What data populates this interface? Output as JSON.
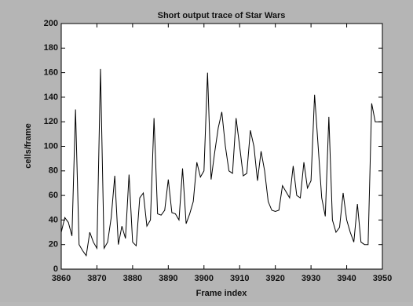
{
  "chart_data": {
    "type": "line",
    "title": "Short output trace of Star Wars",
    "xlabel": "Frame index",
    "ylabel": "cells/frame",
    "x": [
      3860,
      3861,
      3862,
      3863,
      3864,
      3865,
      3866,
      3867,
      3868,
      3869,
      3870,
      3871,
      3872,
      3873,
      3874,
      3875,
      3876,
      3877,
      3878,
      3879,
      3880,
      3881,
      3882,
      3883,
      3884,
      3885,
      3886,
      3887,
      3888,
      3889,
      3890,
      3891,
      3892,
      3893,
      3894,
      3895,
      3896,
      3897,
      3898,
      3899,
      3900,
      3901,
      3902,
      3903,
      3904,
      3905,
      3906,
      3907,
      3908,
      3909,
      3910,
      3911,
      3912,
      3913,
      3914,
      3915,
      3916,
      3917,
      3918,
      3919,
      3920,
      3921,
      3922,
      3923,
      3924,
      3925,
      3926,
      3927,
      3928,
      3929,
      3930,
      3931,
      3932,
      3933,
      3934,
      3935,
      3936,
      3937,
      3938,
      3939,
      3940,
      3941,
      3942,
      3943,
      3944,
      3945,
      3946,
      3947,
      3948,
      3949,
      3950
    ],
    "values": [
      30,
      42,
      38,
      27,
      130,
      20,
      15,
      11,
      30,
      22,
      17,
      163,
      17,
      22,
      42,
      76,
      20,
      35,
      25,
      77,
      22,
      19,
      58,
      62,
      35,
      40,
      123,
      45,
      44,
      48,
      73,
      46,
      45,
      40,
      82,
      37,
      45,
      55,
      87,
      75,
      80,
      160,
      73,
      95,
      115,
      128,
      100,
      80,
      78,
      123,
      100,
      76,
      78,
      113,
      100,
      72,
      96,
      80,
      55,
      48,
      47,
      48,
      68,
      63,
      58,
      84,
      60,
      58,
      87,
      66,
      72,
      142,
      100,
      58,
      43,
      124,
      40,
      30,
      34,
      62,
      40,
      30,
      22,
      53,
      22,
      20,
      20,
      135,
      120,
      120,
      120
    ],
    "color": "#000000",
    "xlim": [
      3860,
      3950
    ],
    "xticks": [
      3860,
      3870,
      3880,
      3890,
      3900,
      3910,
      3920,
      3930,
      3940,
      3950
    ],
    "ylim": [
      0,
      200
    ],
    "yticks": [
      0,
      20,
      40,
      60,
      80,
      100,
      120,
      140,
      160,
      180,
      200
    ]
  }
}
